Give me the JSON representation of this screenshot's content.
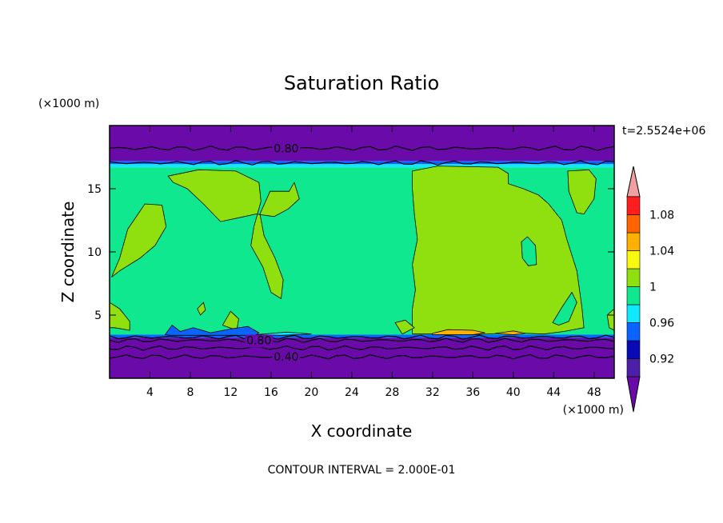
{
  "chart_data": {
    "type": "heatmap",
    "title": "Saturation Ratio",
    "xlabel": "X coordinate",
    "ylabel": "Z coordinate",
    "x_unit": "(×1000 m)",
    "y_unit": "(×1000 m)",
    "time_label": "t=2.5524e+06",
    "footer": "CONTOUR INTERVAL = 2.000E-01",
    "xlim": [
      0,
      50
    ],
    "ylim": [
      0,
      20
    ],
    "x_ticks": [
      4,
      8,
      12,
      16,
      20,
      24,
      28,
      32,
      36,
      40,
      44,
      48
    ],
    "y_ticks": [
      5,
      10,
      15
    ],
    "colorbar": {
      "tick_labels": [
        "0.92",
        "0.96",
        "1",
        "1.04",
        "1.08"
      ],
      "levels": [
        {
          "upper": 0.9,
          "color": "#6a0aa8"
        },
        {
          "upper": 0.92,
          "color": "#4b1fa8"
        },
        {
          "upper": 0.94,
          "color": "#0a0ab4"
        },
        {
          "upper": 0.96,
          "color": "#0a64ff"
        },
        {
          "upper": 0.98,
          "color": "#10e8ff"
        },
        {
          "upper": 1.0,
          "color": "#10e890"
        },
        {
          "upper": 1.02,
          "color": "#90e010"
        },
        {
          "upper": 1.04,
          "color": "#f8f810"
        },
        {
          "upper": 1.06,
          "color": "#ffb000"
        },
        {
          "upper": 1.08,
          "color": "#ff6400"
        },
        {
          "upper": 1.1,
          "color": "#ff1e1e"
        },
        {
          "upper": 9.99,
          "color": "#f0a0a0"
        }
      ]
    },
    "contour_labels": [
      {
        "text": "0.80",
        "x": 17.5,
        "y": 18.2
      },
      {
        "text": "0.80",
        "x": 14.8,
        "y": 3.0
      },
      {
        "text": "0.40",
        "x": 17.5,
        "y": 1.7
      }
    ],
    "bands": [
      {
        "ymin": 0.0,
        "ymax": 3.2,
        "color": "#6a0aa8"
      },
      {
        "ymin": 3.2,
        "ymax": 3.45,
        "color": "#0a64ff"
      },
      {
        "ymin": 3.45,
        "ymax": 16.7,
        "color": "#10e890"
      },
      {
        "ymin": 16.7,
        "ymax": 16.95,
        "color": "#10e8ff"
      },
      {
        "ymin": 16.95,
        "ymax": 17.2,
        "color": "#0a64ff"
      },
      {
        "ymin": 17.2,
        "ymax": 20.0,
        "color": "#6a0aa8"
      }
    ],
    "lines": [
      {
        "y": 18.2,
        "label": "0.80"
      },
      {
        "y": 17.05
      },
      {
        "y": 3.25
      },
      {
        "y": 3.0
      },
      {
        "y": 2.4
      },
      {
        "y": 1.7
      }
    ],
    "regions": [
      {
        "color": "#90e010",
        "points": [
          [
            0.2,
            8.0
          ],
          [
            1.0,
            9.5
          ],
          [
            1.8,
            11.8
          ],
          [
            3.5,
            13.8
          ],
          [
            5.2,
            13.7
          ],
          [
            5.6,
            12.0
          ],
          [
            4.5,
            10.5
          ],
          [
            3.0,
            9.5
          ],
          [
            1.0,
            8.5
          ]
        ]
      },
      {
        "color": "#90e010",
        "points": [
          [
            5.8,
            16.0
          ],
          [
            8.8,
            16.5
          ],
          [
            12.5,
            16.4
          ],
          [
            14.8,
            15.5
          ],
          [
            15.0,
            14.0
          ],
          [
            14.3,
            12.0
          ],
          [
            14.0,
            10.5
          ],
          [
            15.2,
            8.8
          ],
          [
            16.0,
            6.8
          ],
          [
            17.0,
            6.3
          ],
          [
            17.2,
            7.8
          ],
          [
            16.4,
            9.5
          ],
          [
            15.3,
            11.3
          ],
          [
            14.9,
            13.0
          ],
          [
            15.9,
            14.8
          ],
          [
            17.8,
            14.8
          ],
          [
            18.3,
            15.5
          ],
          [
            18.8,
            14.2
          ],
          [
            17.7,
            13.4
          ],
          [
            16.3,
            12.8
          ],
          [
            14.5,
            13.0
          ],
          [
            12.8,
            12.7
          ],
          [
            11.0,
            12.4
          ],
          [
            9.3,
            13.8
          ],
          [
            7.7,
            15.0
          ],
          [
            6.3,
            15.5
          ]
        ]
      },
      {
        "color": "#90e010",
        "points": [
          [
            0.0,
            4.0
          ],
          [
            0.0,
            6.0
          ],
          [
            1.0,
            5.5
          ],
          [
            2.0,
            4.5
          ],
          [
            2.0,
            3.8
          ],
          [
            0.5,
            4.0
          ]
        ]
      },
      {
        "color": "#90e010",
        "points": [
          [
            11.2,
            4.2
          ],
          [
            12.0,
            5.3
          ],
          [
            12.8,
            4.7
          ],
          [
            12.6,
            3.8
          ]
        ]
      },
      {
        "color": "#90e010",
        "points": [
          [
            8.7,
            5.5
          ],
          [
            9.3,
            6.0
          ],
          [
            9.5,
            5.4
          ],
          [
            9.0,
            5.0
          ]
        ]
      },
      {
        "color": "#90e010",
        "points": [
          [
            30.0,
            16.4
          ],
          [
            32.5,
            16.8
          ],
          [
            38.5,
            16.7
          ],
          [
            39.5,
            16.2
          ],
          [
            39.5,
            15.4
          ],
          [
            41.0,
            15.0
          ],
          [
            42.5,
            14.5
          ],
          [
            43.5,
            13.8
          ],
          [
            44.8,
            12.5
          ],
          [
            45.3,
            11.0
          ],
          [
            46.3,
            8.5
          ],
          [
            46.8,
            5.6
          ],
          [
            47.0,
            4.0
          ],
          [
            45.0,
            3.7
          ],
          [
            43.0,
            3.5
          ],
          [
            40.0,
            3.6
          ],
          [
            36.0,
            3.45
          ],
          [
            32.0,
            3.5
          ],
          [
            30.0,
            3.5
          ],
          [
            30.0,
            5.5
          ],
          [
            30.3,
            7.0
          ],
          [
            30.0,
            9.0
          ],
          [
            30.5,
            11.0
          ],
          [
            30.2,
            13.0
          ],
          [
            30.0,
            15.0
          ]
        ]
      },
      {
        "color": "#90e010",
        "points": [
          [
            45.4,
            16.4
          ],
          [
            47.5,
            16.5
          ],
          [
            48.2,
            15.8
          ],
          [
            48.0,
            14.2
          ],
          [
            47.0,
            13.0
          ],
          [
            46.3,
            13.1
          ],
          [
            45.5,
            14.8
          ]
        ]
      },
      {
        "color": "#90e010",
        "points": [
          [
            28.3,
            4.4
          ],
          [
            29.3,
            4.6
          ],
          [
            30.2,
            4.0
          ],
          [
            29.0,
            3.5
          ]
        ]
      },
      {
        "color": "#90e010",
        "points": [
          [
            49.3,
            5.0
          ],
          [
            50.0,
            5.5
          ],
          [
            50.0,
            3.8
          ],
          [
            49.5,
            4.0
          ]
        ]
      },
      {
        "color": "#10e890",
        "points": [
          [
            40.8,
            10.8
          ],
          [
            41.4,
            11.2
          ],
          [
            42.2,
            10.5
          ],
          [
            42.3,
            9.0
          ],
          [
            41.5,
            8.9
          ],
          [
            40.9,
            9.5
          ]
        ]
      },
      {
        "color": "#10e890",
        "points": [
          [
            43.9,
            4.4
          ],
          [
            44.8,
            5.6
          ],
          [
            45.8,
            6.8
          ],
          [
            46.3,
            6.0
          ],
          [
            45.5,
            4.5
          ],
          [
            44.5,
            4.2
          ]
        ]
      },
      {
        "color": "#ffb000",
        "points": [
          [
            32.0,
            3.55
          ],
          [
            33.5,
            3.85
          ],
          [
            36.0,
            3.8
          ],
          [
            37.2,
            3.6
          ],
          [
            36.0,
            3.45
          ],
          [
            32.0,
            3.45
          ]
        ]
      },
      {
        "color": "#ffb000",
        "points": [
          [
            38.2,
            3.55
          ],
          [
            40.0,
            3.75
          ],
          [
            41.2,
            3.55
          ],
          [
            40.0,
            3.45
          ]
        ]
      },
      {
        "color": "#0a64ff",
        "points": [
          [
            5.5,
            3.45
          ],
          [
            6.2,
            4.2
          ],
          [
            7.0,
            3.7
          ],
          [
            8.3,
            4.0
          ],
          [
            10.0,
            3.6
          ],
          [
            12.0,
            3.9
          ],
          [
            13.7,
            4.1
          ],
          [
            14.8,
            3.6
          ],
          [
            14.5,
            3.4
          ],
          [
            6.0,
            3.4
          ]
        ]
      },
      {
        "color": "#10e8ff",
        "points": [
          [
            14.5,
            3.45
          ],
          [
            17.5,
            3.65
          ],
          [
            20.0,
            3.5
          ],
          [
            17.0,
            3.4
          ]
        ]
      }
    ]
  }
}
